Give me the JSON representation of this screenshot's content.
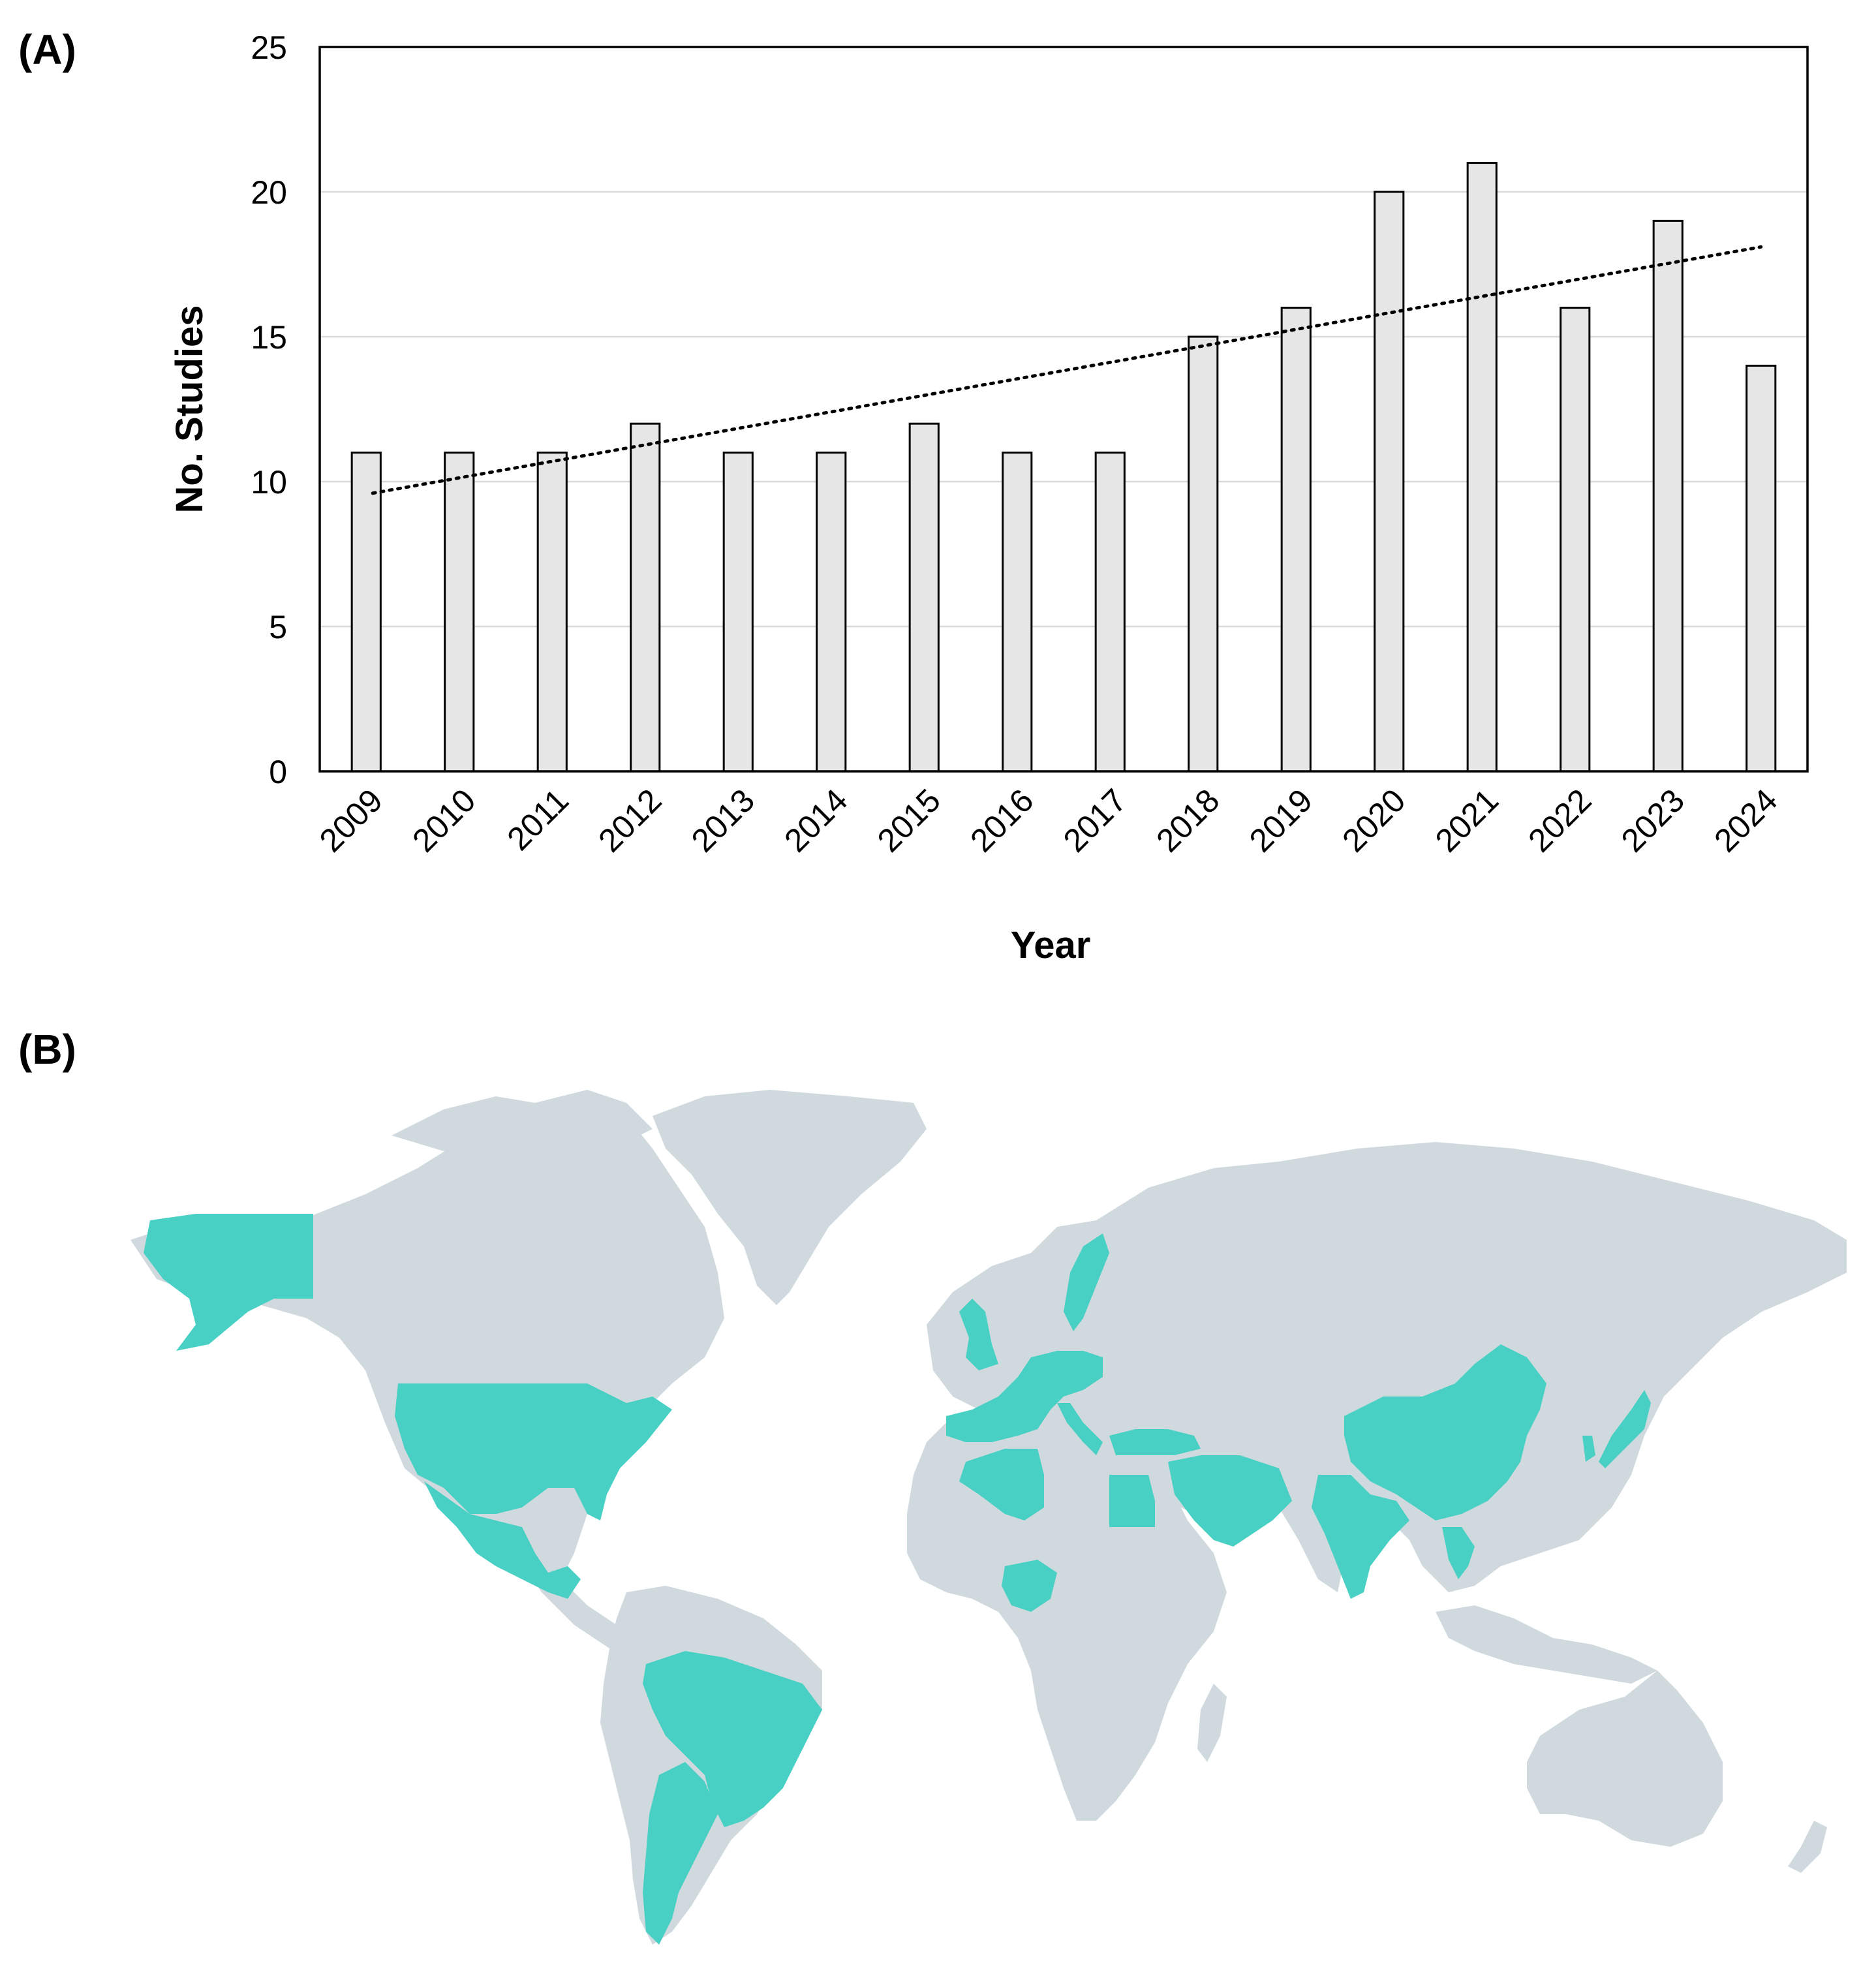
{
  "panel_a_label": "(A)",
  "panel_b_label": "(B)",
  "colors": {
    "bar_fill": "#e6e6e6",
    "bar_stroke": "#000000",
    "gridline": "#d9d9d9",
    "trendline": "#000000",
    "map_land": "#d0dade",
    "map_highlight": "#48d0c4"
  },
  "chart_data": {
    "type": "bar",
    "title": "",
    "xlabel": "Year",
    "ylabel": "No. Studies",
    "categories": [
      "2009",
      "2010",
      "2011",
      "2012",
      "2013",
      "2014",
      "2015",
      "2016",
      "2017",
      "2018",
      "2019",
      "2020",
      "2021",
      "2022",
      "2023",
      "2024"
    ],
    "values": [
      11,
      11,
      11,
      12,
      11,
      11,
      12,
      11,
      11,
      15,
      16,
      20,
      21,
      16,
      19,
      14
    ],
    "ylim": [
      0,
      25
    ],
    "yticks": [
      0,
      5,
      10,
      15,
      20,
      25
    ],
    "grid": "horizontal",
    "legend": "none",
    "trendline": {
      "type": "linear",
      "style": "dotted",
      "start": 9.6,
      "end": 18.1
    }
  },
  "map": {
    "type": "world choropleth",
    "highlighted_countries": [
      "United States",
      "Mexico",
      "Brazil",
      "Argentina",
      "United Kingdom",
      "Ireland",
      "France",
      "Spain",
      "Portugal",
      "Germany",
      "Italy",
      "Sweden",
      "Poland",
      "Greece",
      "Turkey",
      "Iran",
      "Saudi Arabia",
      "Egypt",
      "Algeria",
      "Nigeria",
      "India",
      "China",
      "Thailand",
      "South Korea",
      "Japan",
      "Malaysia"
    ]
  }
}
